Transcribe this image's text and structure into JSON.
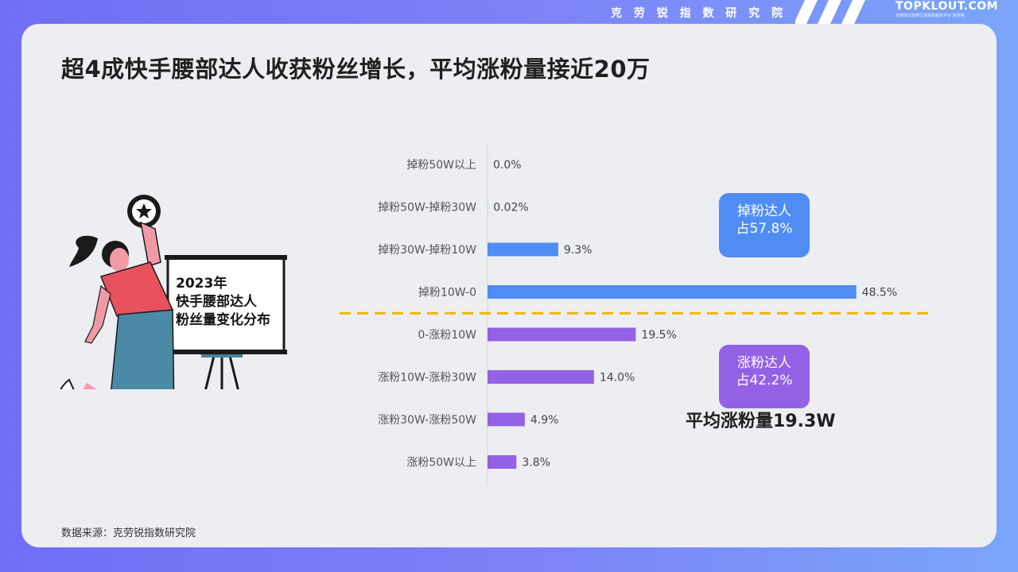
{
  "header": {
    "banner_title": "克 劳 锐 指 数 研 究 院",
    "brand": "TOPKLOUT.COM",
    "brand_tagline": "自媒体价值排行及版权服务平台 克劳锐"
  },
  "headline": "超4成快手腰部达人收获粉丝增长，平均涨粉量接近20万",
  "board_text": [
    "2023年",
    "快手腰部达人",
    "粉丝量变化分布"
  ],
  "callouts": {
    "loss": [
      "掉粉达人",
      "占57.8%"
    ],
    "gain": [
      "涨粉达人",
      "占42.2%"
    ]
  },
  "average_label": "平均涨粉量19.3W",
  "source": "数据来源：克劳锐指数研究院",
  "colors": {
    "loss": "#4f8df5",
    "gain": "#9361e6",
    "divider": "#f5b400"
  },
  "chart_data": {
    "type": "bar",
    "orientation": "horizontal",
    "categories": [
      "掉粉50W以上",
      "掉粉50W-掉粉30W",
      "掉粉30W-掉粉10W",
      "掉粉10W-0",
      "0-涨粉10W",
      "涨粉10W-涨粉30W",
      "涨粉30W-涨粉50W",
      "涨粉50W以上"
    ],
    "values": [
      0.0,
      0.02,
      9.3,
      48.5,
      19.5,
      14.0,
      4.9,
      3.8
    ],
    "value_labels": [
      "0.0%",
      "0.02%",
      "9.3%",
      "48.5%",
      "19.5%",
      "14.0%",
      "4.9%",
      "3.8%"
    ],
    "groups": [
      "loss",
      "loss",
      "loss",
      "loss",
      "gain",
      "gain",
      "gain",
      "gain"
    ],
    "unit": "%"
  }
}
